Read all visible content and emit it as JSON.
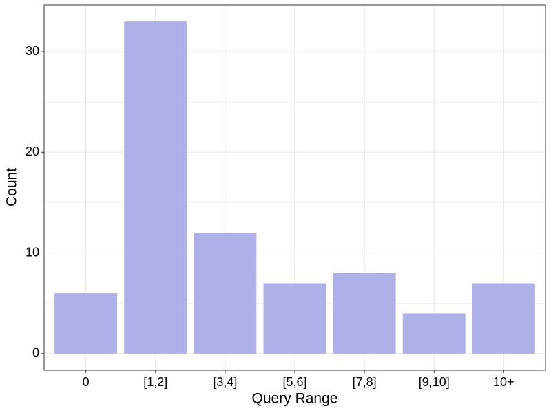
{
  "chart_data": {
    "type": "bar",
    "x_label": "Query Range",
    "y_label": "Count",
    "categories": [
      "0",
      "[1,2]",
      "[3,4]",
      "[5,6]",
      "[7,8]",
      "[9,10]",
      "10+"
    ],
    "values": [
      6,
      33,
      12,
      7,
      8,
      4,
      7
    ],
    "color": "#b0b0e8",
    "ylim": [
      -1.65,
      34.65
    ],
    "yticks": [
      0,
      10,
      20,
      30
    ],
    "minor_yticks": [
      5,
      15,
      25
    ],
    "grid": true
  }
}
